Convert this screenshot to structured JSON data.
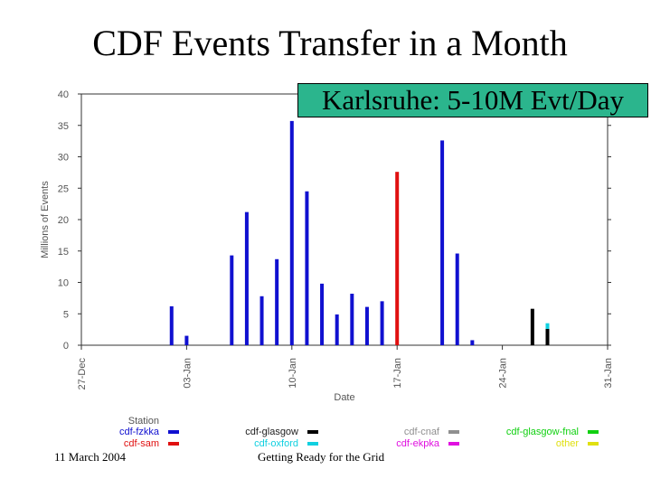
{
  "slide": {
    "title": "CDF Events Transfer in a Month",
    "callout": "Karlsruhe: 5-10M Evt/Day",
    "footer_date": "11 March 2004",
    "footer_center": "Getting Ready for the Grid"
  },
  "chart_data": {
    "type": "bar",
    "xlabel": "Date",
    "ylabel": "Millions of Events",
    "ylim": [
      0,
      40
    ],
    "yticks": [
      0,
      5,
      10,
      15,
      20,
      25,
      30,
      35,
      40
    ],
    "xlim": [
      "2003-12-27",
      "2004-01-31"
    ],
    "xtick_labels": [
      "27-Dec",
      "03-Jan",
      "10-Jan",
      "17-Jan",
      "24-Jan",
      "31-Jan"
    ],
    "grid": false,
    "legend_title": "Station",
    "legend": [
      {
        "name": "cdf-fzkka",
        "color": "#1010d0"
      },
      {
        "name": "cdf-sam",
        "color": "#e01010"
      },
      {
        "name": "cdf-glasgow",
        "color": "#000000"
      },
      {
        "name": "cdf-oxford",
        "color": "#10d0e0"
      },
      {
        "name": "cdf-cnaf",
        "color": "#909090"
      },
      {
        "name": "cdf-ekpka",
        "color": "#e010e0"
      },
      {
        "name": "cdf-glasgow-fnal",
        "color": "#10d010"
      },
      {
        "name": "other",
        "color": "#e0e010"
      }
    ],
    "series": [
      {
        "name": "cdf-fzkka",
        "points": [
          {
            "x": "2004-01-02",
            "y": 6.2
          },
          {
            "x": "2004-01-03",
            "y": 1.5
          },
          {
            "x": "2004-01-06",
            "y": 14.3
          },
          {
            "x": "2004-01-07",
            "y": 21.2
          },
          {
            "x": "2004-01-08",
            "y": 7.8
          },
          {
            "x": "2004-01-09",
            "y": 13.7
          },
          {
            "x": "2004-01-10",
            "y": 35.7
          },
          {
            "x": "2004-01-11",
            "y": 24.5
          },
          {
            "x": "2004-01-12",
            "y": 9.8
          },
          {
            "x": "2004-01-13",
            "y": 4.9
          },
          {
            "x": "2004-01-14",
            "y": 8.2
          },
          {
            "x": "2004-01-15",
            "y": 6.1
          },
          {
            "x": "2004-01-16",
            "y": 7.0
          },
          {
            "x": "2004-01-20",
            "y": 32.6
          },
          {
            "x": "2004-01-21",
            "y": 14.6
          },
          {
            "x": "2004-01-22",
            "y": 0.8
          }
        ]
      },
      {
        "name": "cdf-sam",
        "points": [
          {
            "x": "2004-01-17",
            "y": 27.6
          }
        ]
      },
      {
        "name": "cdf-glasgow",
        "points": [
          {
            "x": "2004-01-26",
            "y": 5.8
          },
          {
            "x": "2004-01-27",
            "y": 2.6
          }
        ]
      },
      {
        "name": "cdf-oxford",
        "points": [
          {
            "x": "2004-01-27",
            "y": 0.9
          }
        ]
      }
    ]
  }
}
